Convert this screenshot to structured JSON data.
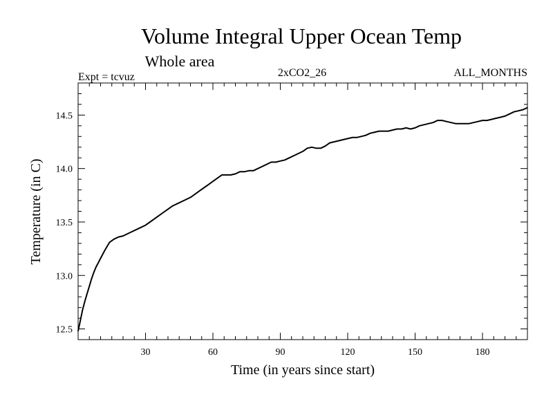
{
  "chart_data": {
    "type": "line",
    "title": "Volume Integral Upper Ocean Temp",
    "subtitle": "Whole area",
    "experiment": "Expt = tcvuz",
    "run": "2xCO2_26",
    "period": "ALL_MONTHS",
    "xlabel": "Time (in years since start)",
    "ylabel": "Temperature (in C)",
    "xlim": [
      0,
      200
    ],
    "ylim": [
      12.4,
      14.8
    ],
    "x_ticks": [
      30,
      60,
      90,
      120,
      150,
      180
    ],
    "x_tick_labels": [
      "30",
      "60",
      "90",
      "120",
      "150",
      "180"
    ],
    "y_ticks": [
      12.5,
      13.0,
      13.5,
      14.0,
      14.5
    ],
    "y_tick_labels": [
      "12.5",
      "13.0",
      "13.5",
      "14.0",
      "14.5"
    ],
    "legend": "none",
    "grid": false,
    "line_color": "#000000",
    "series": [
      {
        "x": [
          0,
          1,
          2,
          3,
          4,
          5,
          6,
          7,
          8,
          9,
          10,
          12,
          14,
          16,
          18,
          20,
          22,
          24,
          26,
          28,
          30,
          32,
          34,
          36,
          38,
          40,
          42,
          44,
          46,
          48,
          50,
          52,
          54,
          56,
          58,
          60,
          62,
          64,
          66,
          68,
          70,
          72,
          74,
          76,
          78,
          80,
          82,
          84,
          86,
          88,
          90,
          92,
          94,
          96,
          98,
          100,
          102,
          104,
          106,
          108,
          110,
          112,
          114,
          116,
          118,
          120,
          122,
          124,
          126,
          128,
          130,
          132,
          134,
          136,
          138,
          140,
          142,
          144,
          146,
          148,
          150,
          152,
          154,
          156,
          158,
          160,
          162,
          164,
          166,
          168,
          170,
          172,
          174,
          176,
          178,
          180,
          182,
          184,
          186,
          188,
          190,
          192,
          194,
          196,
          198,
          200
        ],
        "y": [
          12.48,
          12.58,
          12.68,
          12.76,
          12.83,
          12.9,
          12.97,
          13.03,
          13.08,
          13.12,
          13.16,
          13.24,
          13.31,
          13.34,
          13.36,
          13.37,
          13.39,
          13.41,
          13.43,
          13.45,
          13.47,
          13.5,
          13.53,
          13.56,
          13.59,
          13.62,
          13.65,
          13.67,
          13.69,
          13.71,
          13.73,
          13.76,
          13.79,
          13.82,
          13.85,
          13.88,
          13.91,
          13.94,
          13.94,
          13.94,
          13.95,
          13.97,
          13.97,
          13.98,
          13.98,
          14.0,
          14.02,
          14.04,
          14.06,
          14.06,
          14.07,
          14.08,
          14.1,
          14.12,
          14.14,
          14.16,
          14.19,
          14.2,
          14.19,
          14.19,
          14.21,
          14.24,
          14.25,
          14.26,
          14.27,
          14.28,
          14.29,
          14.29,
          14.3,
          14.31,
          14.33,
          14.34,
          14.35,
          14.35,
          14.35,
          14.36,
          14.37,
          14.37,
          14.38,
          14.37,
          14.38,
          14.4,
          14.41,
          14.42,
          14.43,
          14.45,
          14.45,
          14.44,
          14.43,
          14.42,
          14.42,
          14.42,
          14.42,
          14.43,
          14.44,
          14.45,
          14.45,
          14.46,
          14.47,
          14.48,
          14.49,
          14.51,
          14.53,
          14.54,
          14.55,
          14.57
        ]
      }
    ]
  }
}
